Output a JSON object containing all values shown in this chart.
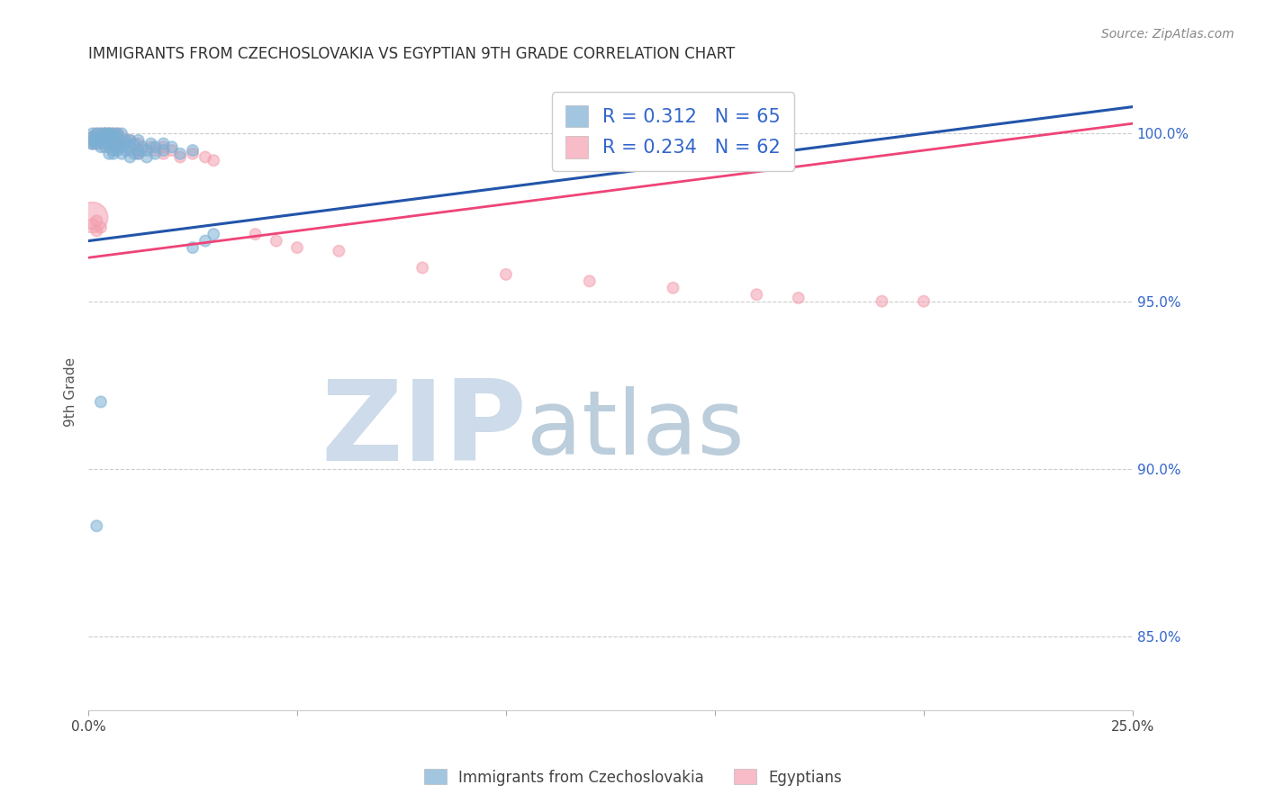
{
  "title": "IMMIGRANTS FROM CZECHOSLOVAKIA VS EGYPTIAN 9TH GRADE CORRELATION CHART",
  "source_text": "Source: ZipAtlas.com",
  "ylabel": "9th Grade",
  "y_ticks": [
    0.85,
    0.9,
    0.95,
    1.0
  ],
  "y_tick_labels": [
    "85.0%",
    "90.0%",
    "95.0%",
    "100.0%"
  ],
  "xlim": [
    0.0,
    0.25
  ],
  "ylim": [
    0.828,
    1.018
  ],
  "blue_R": 0.312,
  "blue_N": 65,
  "pink_R": 0.234,
  "pink_N": 62,
  "blue_color": "#7BAFD4",
  "pink_color": "#F4A0B0",
  "blue_line_color": "#2255AA",
  "pink_line_color": "#EE4477",
  "legend_label_blue": "Immigrants from Czechoslovakia",
  "legend_label_pink": "Egyptians",
  "watermark_zip": "ZIP",
  "watermark_atlas": "atlas",
  "watermark_color_zip": "#C8D8E8",
  "watermark_color_atlas": "#A0B8CC",
  "blue_trend_x": [
    0.0,
    0.25
  ],
  "blue_trend_y": [
    0.968,
    1.008
  ],
  "pink_trend_x": [
    0.0,
    0.25
  ],
  "pink_trend_y": [
    0.963,
    1.003
  ],
  "blue_scatter_x": [
    0.001,
    0.002,
    0.001,
    0.003,
    0.002,
    0.001,
    0.004,
    0.003,
    0.002,
    0.001,
    0.005,
    0.004,
    0.003,
    0.002,
    0.001,
    0.006,
    0.005,
    0.004,
    0.003,
    0.002,
    0.007,
    0.006,
    0.005,
    0.004,
    0.003,
    0.008,
    0.007,
    0.006,
    0.005,
    0.004,
    0.009,
    0.008,
    0.007,
    0.006,
    0.005,
    0.01,
    0.009,
    0.008,
    0.007,
    0.006,
    0.012,
    0.011,
    0.01,
    0.009,
    0.008,
    0.015,
    0.013,
    0.012,
    0.011,
    0.01,
    0.018,
    0.016,
    0.014,
    0.012,
    0.02,
    0.018,
    0.016,
    0.014,
    0.025,
    0.022,
    0.03,
    0.028,
    0.025,
    0.003,
    0.002
  ],
  "blue_scatter_y": [
    1.0,
    1.0,
    0.999,
    1.0,
    0.999,
    0.998,
    1.0,
    0.999,
    0.998,
    0.997,
    1.0,
    1.0,
    0.999,
    0.998,
    0.997,
    1.0,
    1.0,
    0.999,
    0.998,
    0.997,
    1.0,
    0.999,
    0.998,
    0.997,
    0.996,
    1.0,
    0.999,
    0.998,
    0.997,
    0.996,
    0.998,
    0.997,
    0.996,
    0.995,
    0.994,
    0.998,
    0.997,
    0.996,
    0.995,
    0.994,
    0.998,
    0.997,
    0.996,
    0.995,
    0.994,
    0.997,
    0.996,
    0.995,
    0.994,
    0.993,
    0.997,
    0.996,
    0.995,
    0.994,
    0.996,
    0.995,
    0.994,
    0.993,
    0.995,
    0.994,
    0.97,
    0.968,
    0.966,
    0.92,
    0.883
  ],
  "blue_scatter_s": [
    80,
    80,
    80,
    80,
    80,
    80,
    80,
    80,
    80,
    80,
    80,
    80,
    80,
    80,
    80,
    80,
    80,
    80,
    80,
    80,
    80,
    80,
    80,
    80,
    80,
    80,
    80,
    80,
    80,
    80,
    80,
    80,
    80,
    80,
    80,
    80,
    80,
    80,
    80,
    80,
    80,
    80,
    80,
    80,
    80,
    80,
    80,
    80,
    80,
    80,
    80,
    80,
    80,
    80,
    80,
    80,
    80,
    80,
    80,
    80,
    80,
    80,
    80,
    80,
    80
  ],
  "pink_scatter_x": [
    0.001,
    0.002,
    0.001,
    0.003,
    0.002,
    0.004,
    0.003,
    0.002,
    0.001,
    0.005,
    0.004,
    0.003,
    0.002,
    0.006,
    0.005,
    0.004,
    0.003,
    0.007,
    0.006,
    0.005,
    0.004,
    0.008,
    0.007,
    0.006,
    0.005,
    0.009,
    0.008,
    0.007,
    0.01,
    0.009,
    0.008,
    0.012,
    0.011,
    0.01,
    0.015,
    0.013,
    0.012,
    0.018,
    0.016,
    0.02,
    0.018,
    0.025,
    0.022,
    0.028,
    0.03,
    0.04,
    0.045,
    0.05,
    0.06,
    0.001,
    0.002,
    0.001,
    0.003,
    0.002,
    0.08,
    0.1,
    0.12,
    0.14,
    0.16,
    0.17,
    0.19,
    0.2
  ],
  "pink_scatter_y": [
    0.999,
    1.0,
    0.998,
    1.0,
    0.999,
    1.0,
    0.999,
    0.998,
    0.997,
    1.0,
    0.999,
    0.998,
    0.997,
    1.0,
    0.999,
    0.998,
    0.997,
    1.0,
    0.999,
    0.998,
    0.997,
    0.999,
    0.998,
    0.997,
    0.996,
    0.998,
    0.997,
    0.996,
    0.998,
    0.997,
    0.996,
    0.997,
    0.996,
    0.995,
    0.996,
    0.995,
    0.994,
    0.996,
    0.995,
    0.995,
    0.994,
    0.994,
    0.993,
    0.993,
    0.992,
    0.97,
    0.968,
    0.966,
    0.965,
    0.975,
    0.974,
    0.973,
    0.972,
    0.971,
    0.96,
    0.958,
    0.956,
    0.954,
    0.952,
    0.951,
    0.95,
    0.95
  ],
  "pink_scatter_s": [
    80,
    80,
    80,
    80,
    80,
    80,
    80,
    80,
    80,
    80,
    80,
    80,
    80,
    80,
    80,
    80,
    80,
    80,
    80,
    80,
    80,
    80,
    80,
    80,
    80,
    80,
    80,
    80,
    80,
    80,
    80,
    80,
    80,
    80,
    80,
    80,
    80,
    80,
    80,
    80,
    80,
    80,
    80,
    80,
    80,
    80,
    80,
    80,
    80,
    600,
    80,
    80,
    80,
    80,
    80,
    80,
    80,
    80,
    80,
    80,
    80,
    80
  ]
}
